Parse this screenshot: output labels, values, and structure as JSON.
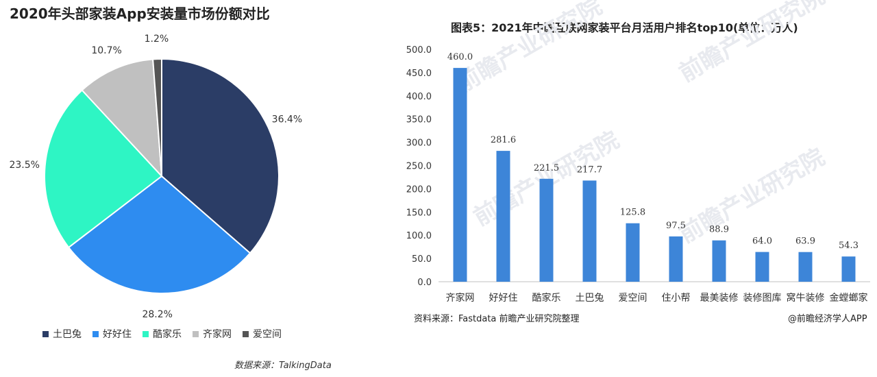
{
  "pie_chart": {
    "title": "2020年头部家装App安装量市场份额对比",
    "source": "数据来源：TalkingData",
    "chart_data": {
      "type": "pie",
      "title": "2020年头部家装App安装量市场份额对比",
      "unit": "%",
      "legend_position": "bottom",
      "slices": [
        {
          "name": "土巴兔",
          "value": 36.4,
          "label": "36.4%",
          "color": "#2b3d66"
        },
        {
          "name": "好好住",
          "value": 28.2,
          "label": "28.2%",
          "color": "#2e8cf0"
        },
        {
          "name": "酷家乐",
          "value": 23.5,
          "label": "23.5%",
          "color": "#2ef5c4"
        },
        {
          "name": "齐家网",
          "value": 10.7,
          "label": "10.7%",
          "color": "#c0c0c0"
        },
        {
          "name": "爱空间",
          "value": 1.2,
          "label": "1.2%",
          "color": "#555555"
        }
      ]
    }
  },
  "bar_chart": {
    "title": "图表5：2021年中国互联网家装平台月活用户排名top10(单位：万人)",
    "source": "资料来源：Fastdata 前瞻产业研究院整理",
    "credit": "@前瞻经济学人APP",
    "watermark": "前瞻产业研究院",
    "chart_data": {
      "type": "bar",
      "title": "图表5：2021年中国互联网家装平台月活用户排名top10(单位：万人)",
      "categories": [
        "齐家网",
        "好好住",
        "酷家乐",
        "土巴兔",
        "爱空间",
        "住小帮",
        "最美装修",
        "装修图库",
        "窝牛装修",
        "金螳螂家"
      ],
      "values": [
        460.0,
        281.6,
        221.5,
        217.7,
        125.8,
        97.5,
        88.9,
        64.0,
        63.9,
        54.3
      ],
      "value_labels": [
        "460.0",
        "281.6",
        "221.5",
        "217.7",
        "125.8",
        "97.5",
        "88.9",
        "64.0",
        "63.9",
        "54.3"
      ],
      "y_ticks": [
        "0.0",
        "50.0",
        "100.0",
        "150.0",
        "200.0",
        "250.0",
        "300.0",
        "350.0",
        "400.0",
        "450.0",
        "500.0"
      ],
      "ylim": [
        0,
        500
      ],
      "grid": false,
      "bar_color": "#3d85d8"
    }
  }
}
